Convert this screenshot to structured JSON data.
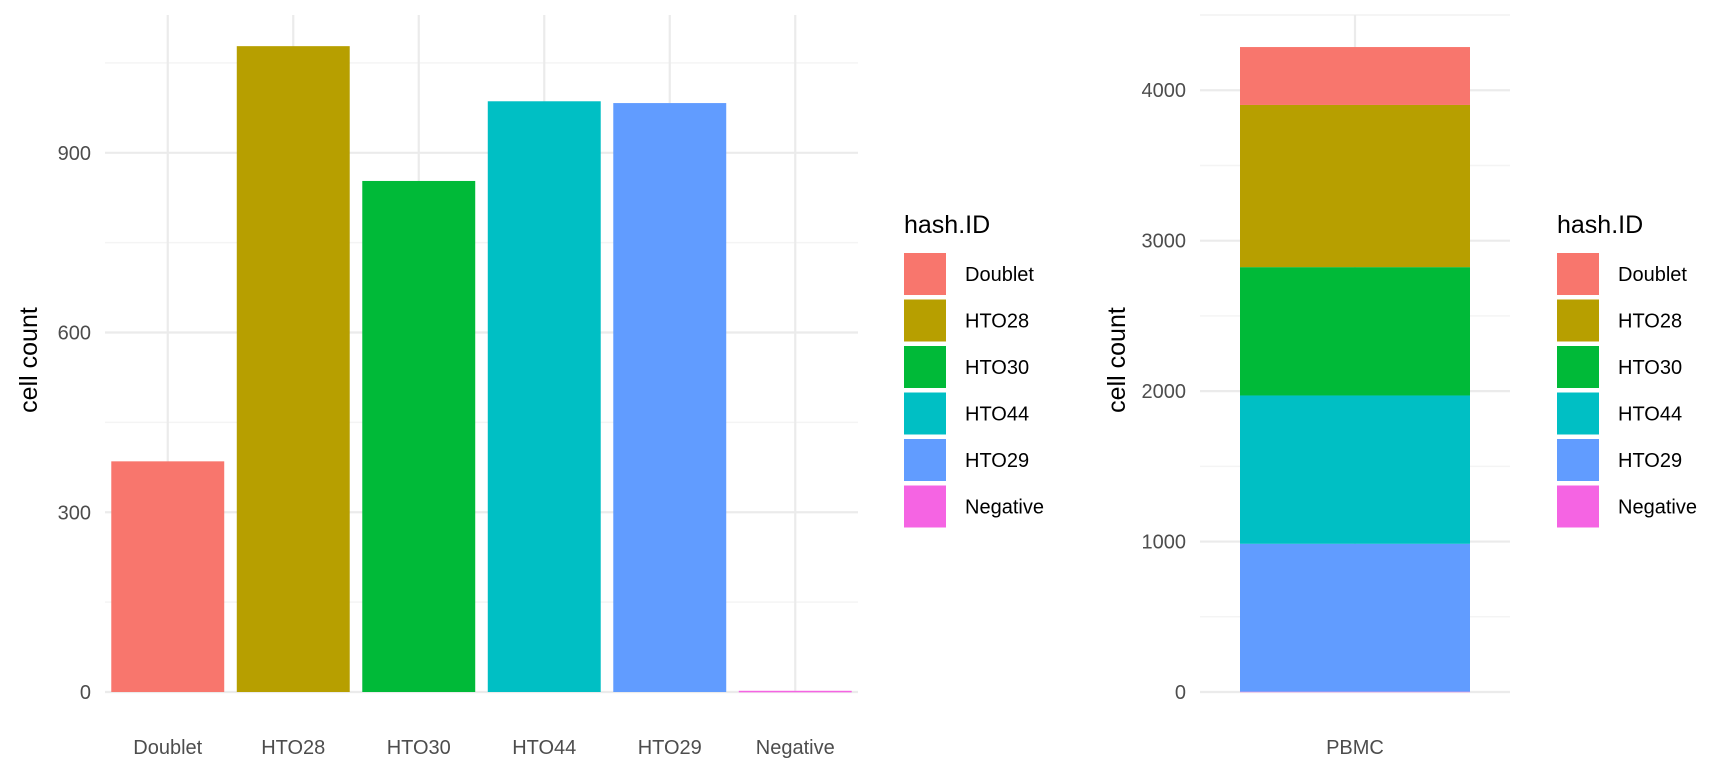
{
  "chart_data": [
    {
      "type": "bar",
      "categories": [
        "Doublet",
        "HTO28",
        "HTO30",
        "HTO44",
        "HTO29",
        "Negative"
      ],
      "values": [
        385,
        1078,
        853,
        986,
        983,
        2
      ],
      "colors": [
        "#F8766D",
        "#B79F00",
        "#00BA38",
        "#00BFC4",
        "#619CFF",
        "#F564E3"
      ],
      "title": "",
      "xlabel": "",
      "ylabel": "cell count",
      "ylim": [
        0,
        1130
      ],
      "yticks": [
        0,
        300,
        600,
        900
      ],
      "ytick_labels": [
        "0",
        "300",
        "600",
        "900"
      ],
      "grid": true,
      "legend": {
        "title": "hash.ID",
        "placement": "right",
        "entries": [
          "Doublet",
          "HTO28",
          "HTO30",
          "HTO44",
          "HTO29",
          "Negative"
        ]
      }
    },
    {
      "type": "bar",
      "stacked": true,
      "categories": [
        "PBMC"
      ],
      "series": [
        {
          "name": "Doublet",
          "values": [
            385
          ]
        },
        {
          "name": "HTO28",
          "values": [
            1078
          ]
        },
        {
          "name": "HTO30",
          "values": [
            853
          ]
        },
        {
          "name": "HTO44",
          "values": [
            986
          ]
        },
        {
          "name": "HTO29",
          "values": [
            983
          ]
        },
        {
          "name": "Negative",
          "values": [
            2
          ]
        }
      ],
      "colors": [
        "#F8766D",
        "#B79F00",
        "#00BA38",
        "#00BFC4",
        "#619CFF",
        "#F564E3"
      ],
      "title": "",
      "xlabel": "",
      "ylabel": "cell count",
      "ylim": [
        0,
        4500
      ],
      "yticks": [
        0,
        1000,
        2000,
        3000,
        4000
      ],
      "ytick_labels": [
        "0",
        "1000",
        "2000",
        "3000",
        "4000"
      ],
      "grid": true,
      "legend": {
        "title": "hash.ID",
        "placement": "right",
        "entries": [
          "Doublet",
          "HTO28",
          "HTO30",
          "HTO44",
          "HTO29",
          "Negative"
        ]
      }
    }
  ]
}
